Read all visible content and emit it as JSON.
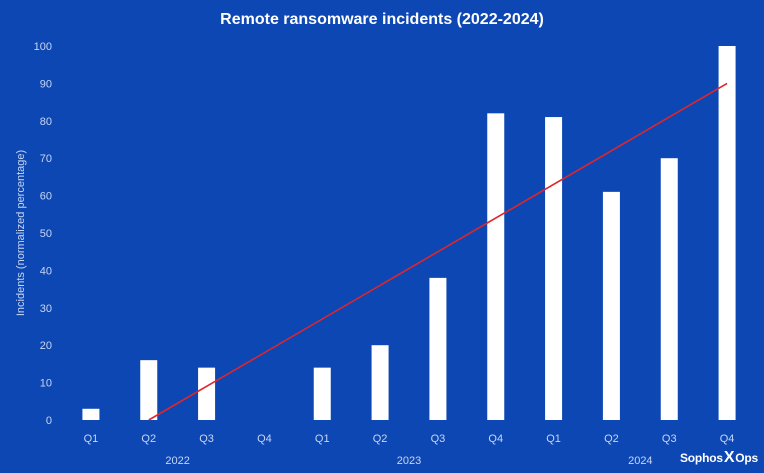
{
  "chart_data": {
    "type": "bar",
    "title": "Remote ransomware incidents (2022-2024)",
    "xlabel": "",
    "ylabel": "Incidents (normalized percentage)",
    "ylim": [
      0,
      100
    ],
    "yticks": [
      0,
      10,
      20,
      30,
      40,
      50,
      60,
      70,
      80,
      90,
      100
    ],
    "categories": [
      "Q1",
      "Q2",
      "Q3",
      "Q4",
      "Q1",
      "Q2",
      "Q3",
      "Q4",
      "Q1",
      "Q2",
      "Q3",
      "Q4"
    ],
    "year_groups": [
      {
        "label": "2022",
        "count": 4
      },
      {
        "label": "2023",
        "count": 4
      },
      {
        "label": "2024",
        "count": 4
      }
    ],
    "values": [
      3,
      16,
      14,
      0,
      14,
      20,
      38,
      82,
      81,
      61,
      70,
      100
    ],
    "trendline": {
      "start": [
        2,
        0
      ],
      "end": [
        12,
        90
      ]
    },
    "grid": false,
    "legend": "none"
  },
  "colors": {
    "background": "#0d47b3",
    "bars": "#ffffff",
    "trendline": "#e0252b",
    "text": "#ffffff",
    "axis_text": "#c8d6f2"
  },
  "logo": {
    "brand": "Sophos",
    "mark": "X",
    "suffix": "Ops"
  }
}
